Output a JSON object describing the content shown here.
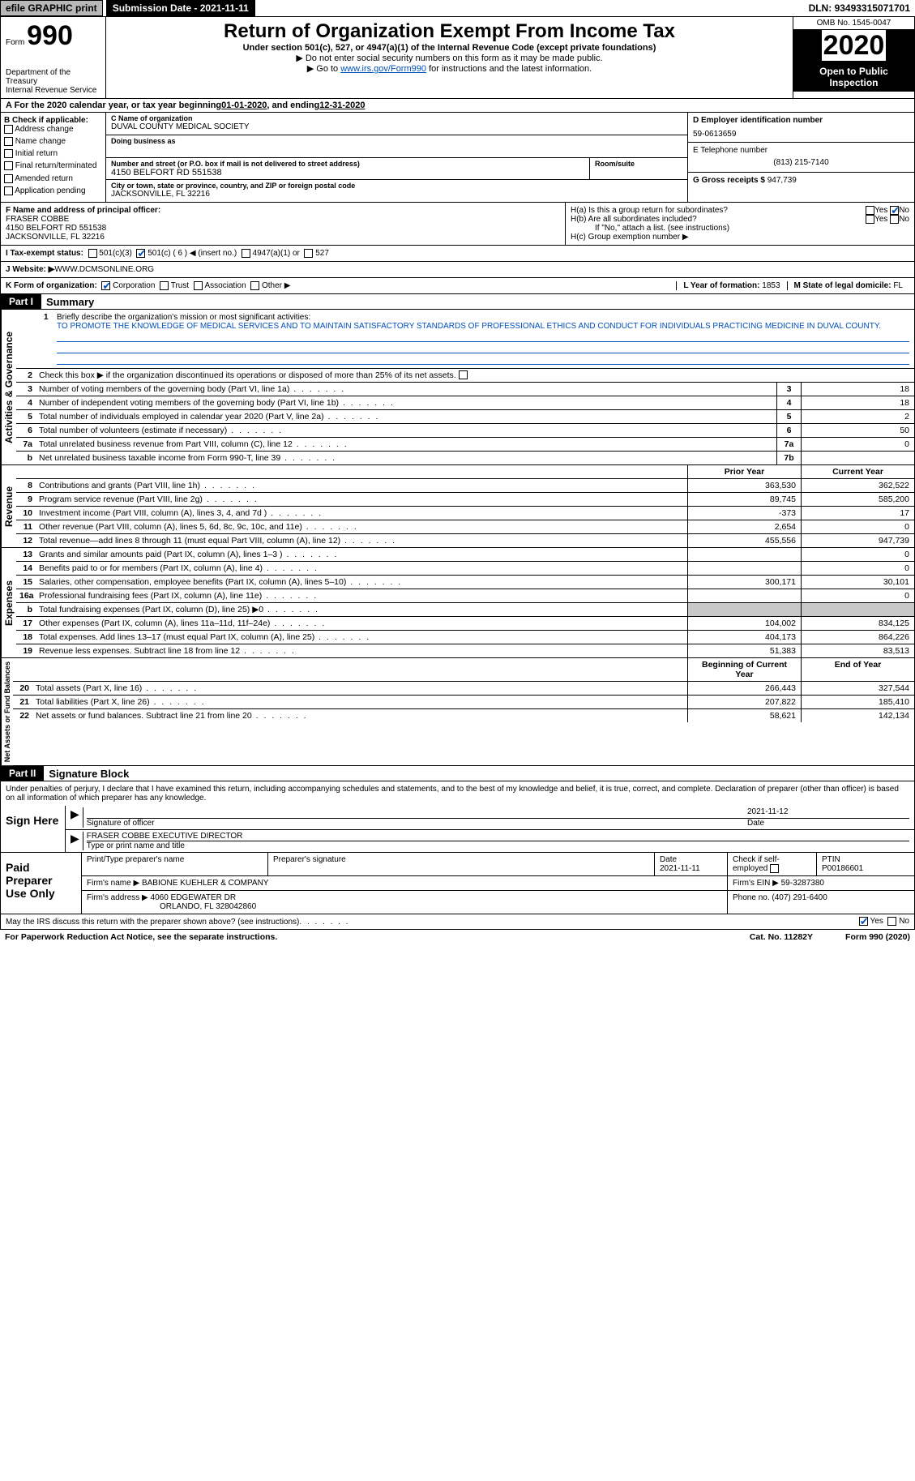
{
  "topbar": {
    "efile": "efile GRAPHIC print",
    "subdate_label": "Submission Date - ",
    "subdate": "2021-11-11",
    "dln_label": "DLN: ",
    "dln": "93493315071701"
  },
  "header": {
    "form_prefix": "Form",
    "form_num": "990",
    "dept": "Department of the Treasury\nInternal Revenue Service",
    "title": "Return of Organization Exempt From Income Tax",
    "sub": "Under section 501(c), 527, or 4947(a)(1) of the Internal Revenue Code (except private foundations)",
    "sub2a": "▶ Do not enter social security numbers on this form as it may be made public.",
    "sub2b_pre": "▶ Go to ",
    "sub2b_link": "www.irs.gov/Form990",
    "sub2b_post": " for instructions and the latest information.",
    "omb": "OMB No. 1545-0047",
    "year": "2020",
    "open": "Open to Public Inspection"
  },
  "period": {
    "prefix": "A For the 2020 calendar year, or tax year beginning ",
    "begin": "01-01-2020",
    "mid": " , and ending ",
    "end": "12-31-2020"
  },
  "boxB": {
    "hdr": "B Check if applicable:",
    "items": [
      "Address change",
      "Name change",
      "Initial return",
      "Final return/terminated",
      "Amended return",
      "Application pending"
    ]
  },
  "boxC": {
    "name_lbl": "C Name of organization",
    "name": "DUVAL COUNTY MEDICAL SOCIETY",
    "dba_lbl": "Doing business as",
    "dba": "",
    "addr_lbl": "Number and street (or P.O. box if mail is not delivered to street address)",
    "room_lbl": "Room/suite",
    "addr": "4150 BELFORT RD 551538",
    "city_lbl": "City or town, state or province, country, and ZIP or foreign postal code",
    "city": "JACKSONVILLE, FL  32216"
  },
  "boxD": {
    "lbl": "D Employer identification number",
    "val": "59-0613659"
  },
  "boxE": {
    "lbl": "E Telephone number",
    "val": "(813) 215-7140"
  },
  "boxG": {
    "lbl": "G Gross receipts $ ",
    "val": "947,739"
  },
  "boxF": {
    "lbl": "F Name and address of principal officer:",
    "name": "FRASER COBBE",
    "addr1": "4150 BELFORT RD 551538",
    "addr2": "JACKSONVILLE, FL  32216"
  },
  "boxH": {
    "a": "H(a)  Is this a group return for subordinates?",
    "a_yes": "Yes",
    "a_no": "No",
    "b": "H(b)  Are all subordinates included?",
    "b_yes": "Yes",
    "b_no": "No",
    "b_note": "If \"No,\" attach a list. (see instructions)",
    "c": "H(c)  Group exemption number ▶"
  },
  "boxI": {
    "lbl": "I   Tax-exempt status:",
    "o1": "501(c)(3)",
    "o2": "501(c) ( 6 ) ◀ (insert no.)",
    "o3": "4947(a)(1) or",
    "o4": "527"
  },
  "boxJ": {
    "lbl": "J   Website: ▶  ",
    "val": "WWW.DCMSONLINE.ORG"
  },
  "boxK": {
    "lbl": "K Form of organization:",
    "o1": "Corporation",
    "o2": "Trust",
    "o3": "Association",
    "o4": "Other ▶",
    "L": "L Year of formation: ",
    "L_val": "1853",
    "M": "M State of legal domicile: ",
    "M_val": "FL"
  },
  "part1": {
    "hdr": "Part I",
    "title": "Summary",
    "q1": "Briefly describe the organization's mission or most significant activities:",
    "q1_val": "TO PROMOTE THE KNOWLEDGE OF MEDICAL SERVICES AND TO MAINTAIN SATISFACTORY STANDARDS OF PROFESSIONAL ETHICS AND CONDUCT FOR INDIVIDUALS PRACTICING MEDICINE IN DUVAL COUNTY.",
    "q2": "Check this box ▶         if the organization discontinued its operations or disposed of more than 25% of its net assets.",
    "side1": "Activities & Governance",
    "rows_gov": [
      {
        "n": "3",
        "d": "Number of voting members of the governing body (Part VI, line 1a)",
        "box": "3",
        "v": "18"
      },
      {
        "n": "4",
        "d": "Number of independent voting members of the governing body (Part VI, line 1b)",
        "box": "4",
        "v": "18"
      },
      {
        "n": "5",
        "d": "Total number of individuals employed in calendar year 2020 (Part V, line 2a)",
        "box": "5",
        "v": "2"
      },
      {
        "n": "6",
        "d": "Total number of volunteers (estimate if necessary)",
        "box": "6",
        "v": "50"
      },
      {
        "n": "7a",
        "d": "Total unrelated business revenue from Part VIII, column (C), line 12",
        "box": "7a",
        "v": "0"
      },
      {
        "n": "b",
        "d": "Net unrelated business taxable income from Form 990-T, line 39",
        "box": "7b",
        "v": ""
      }
    ],
    "side2": "Revenue",
    "col_prior": "Prior Year",
    "col_current": "Current Year",
    "rows_rev": [
      {
        "n": "8",
        "d": "Contributions and grants (Part VIII, line 1h)",
        "p": "363,530",
        "c": "362,522"
      },
      {
        "n": "9",
        "d": "Program service revenue (Part VIII, line 2g)",
        "p": "89,745",
        "c": "585,200"
      },
      {
        "n": "10",
        "d": "Investment income (Part VIII, column (A), lines 3, 4, and 7d )",
        "p": "-373",
        "c": "17"
      },
      {
        "n": "11",
        "d": "Other revenue (Part VIII, column (A), lines 5, 6d, 8c, 9c, 10c, and 11e)",
        "p": "2,654",
        "c": "0"
      },
      {
        "n": "12",
        "d": "Total revenue—add lines 8 through 11 (must equal Part VIII, column (A), line 12)",
        "p": "455,556",
        "c": "947,739"
      }
    ],
    "side3": "Expenses",
    "rows_exp": [
      {
        "n": "13",
        "d": "Grants and similar amounts paid (Part IX, column (A), lines 1–3 )",
        "p": "",
        "c": "0"
      },
      {
        "n": "14",
        "d": "Benefits paid to or for members (Part IX, column (A), line 4)",
        "p": "",
        "c": "0"
      },
      {
        "n": "15",
        "d": "Salaries, other compensation, employee benefits (Part IX, column (A), lines 5–10)",
        "p": "300,171",
        "c": "30,101"
      },
      {
        "n": "16a",
        "d": "Professional fundraising fees (Part IX, column (A), line 11e)",
        "p": "",
        "c": "0"
      },
      {
        "n": "b",
        "d": "Total fundraising expenses (Part IX, column (D), line 25) ▶0",
        "p": "shade",
        "c": "shade"
      },
      {
        "n": "17",
        "d": "Other expenses (Part IX, column (A), lines 11a–11d, 11f–24e)",
        "p": "104,002",
        "c": "834,125"
      },
      {
        "n": "18",
        "d": "Total expenses. Add lines 13–17 (must equal Part IX, column (A), line 25)",
        "p": "404,173",
        "c": "864,226"
      },
      {
        "n": "19",
        "d": "Revenue less expenses. Subtract line 18 from line 12",
        "p": "51,383",
        "c": "83,513"
      }
    ],
    "side4": "Net Assets or Fund Balances",
    "col_begin": "Beginning of Current Year",
    "col_end": "End of Year",
    "rows_net": [
      {
        "n": "20",
        "d": "Total assets (Part X, line 16)",
        "p": "266,443",
        "c": "327,544"
      },
      {
        "n": "21",
        "d": "Total liabilities (Part X, line 26)",
        "p": "207,822",
        "c": "185,410"
      },
      {
        "n": "22",
        "d": "Net assets or fund balances. Subtract line 21 from line 20",
        "p": "58,621",
        "c": "142,134"
      }
    ]
  },
  "part2": {
    "hdr": "Part II",
    "title": "Signature Block",
    "decl": "Under penalties of perjury, I declare that I have examined this return, including accompanying schedules and statements, and to the best of my knowledge and belief, it is true, correct, and complete. Declaration of preparer (other than officer) is based on all information of which preparer has any knowledge.",
    "sign_here": "Sign Here",
    "sig_lbl": "Signature of officer",
    "date_lbl": "Date",
    "sig_date": "2021-11-12",
    "name": "FRASER COBBE  EXECUTIVE DIRECTOR",
    "name_lbl": "Type or print name and title",
    "paid": "Paid Preparer Use Only",
    "p_name_lbl": "Print/Type preparer's name",
    "p_sig_lbl": "Preparer's signature",
    "p_date_lbl": "Date",
    "p_date": "2021-11-11",
    "p_check": "Check         if self-employed",
    "p_ptin_lbl": "PTIN",
    "p_ptin": "P00186601",
    "firm_name_lbl": "Firm's name      ▶ ",
    "firm_name": "BABIONE KUEHLER & COMPANY",
    "firm_ein_lbl": "Firm's EIN ▶ ",
    "firm_ein": "59-3287380",
    "firm_addr_lbl": "Firm's address ▶ ",
    "firm_addr": "4060 EDGEWATER DR",
    "firm_city": "ORLANDO, FL  328042860",
    "firm_phone_lbl": "Phone no. ",
    "firm_phone": "(407) 291-6400",
    "irs_q": "May the IRS discuss this return with the preparer shown above? (see instructions)",
    "yes": "Yes",
    "no": "No"
  },
  "footer": {
    "pra": "For Paperwork Reduction Act Notice, see the separate instructions.",
    "cat": "Cat. No. 11282Y",
    "form": "Form 990 (2020)"
  }
}
